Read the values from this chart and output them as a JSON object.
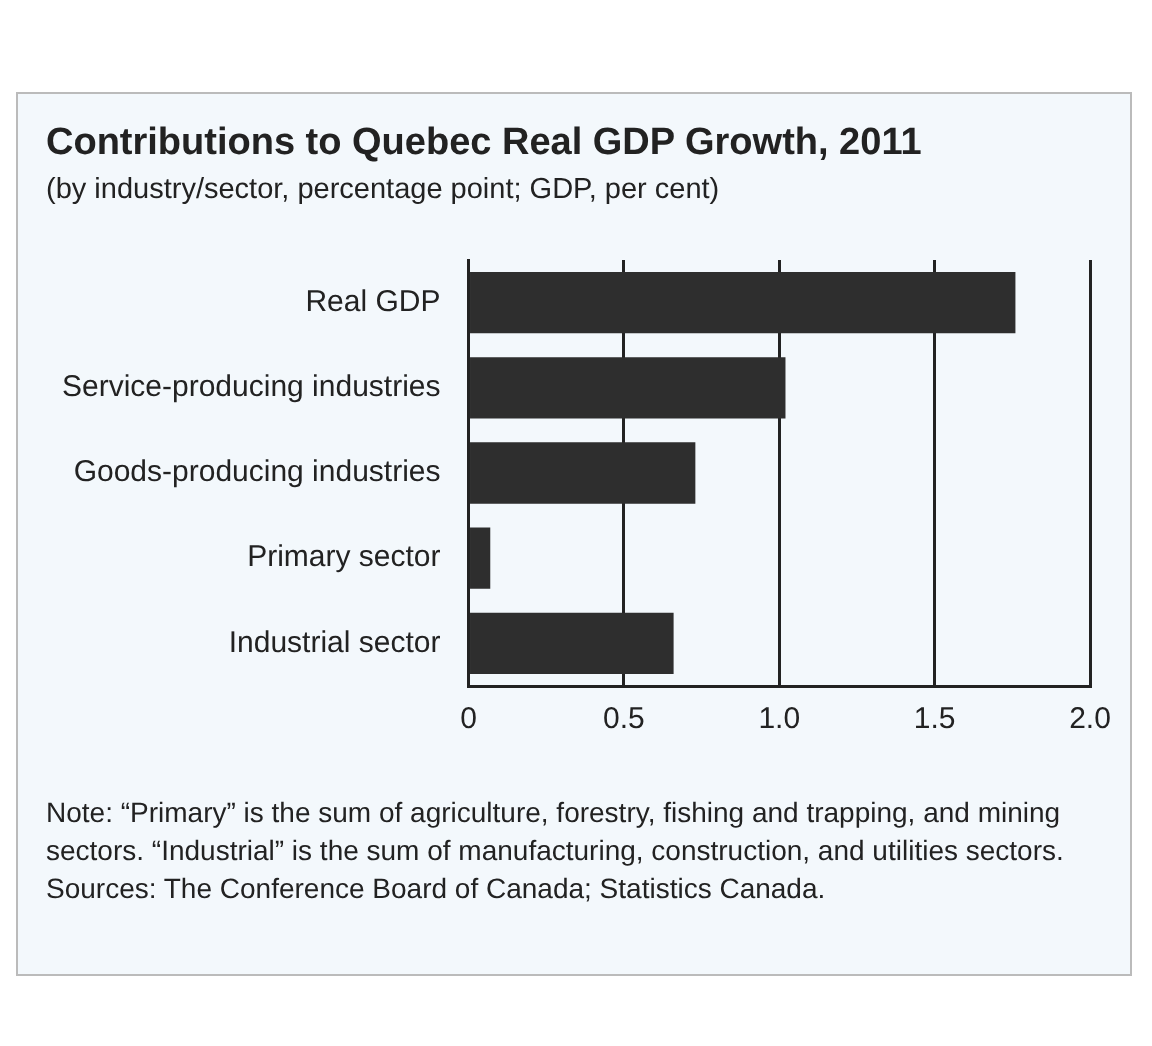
{
  "chart_data": {
    "type": "bar",
    "orientation": "horizontal",
    "title": "Contributions to Quebec Real GDP Growth, 2011",
    "subtitle": "(by industry/sector, percentage point; GDP, per cent)",
    "categories": [
      "Real GDP",
      "Service-producing industries",
      "Goods-producing industries",
      "Primary sector",
      "Industrial sector"
    ],
    "values": [
      1.76,
      1.02,
      0.73,
      0.07,
      0.66
    ],
    "color": "#2e2e2e",
    "xlim": [
      0,
      2.0
    ],
    "xticks": [
      0,
      0.5,
      {
        "value": 1.0,
        "label": "1.0"
      },
      1.5,
      {
        "value": 2.0,
        "label": "2.0"
      }
    ],
    "grid": "x",
    "annotations": [
      "Note: “Primary” is the sum of agriculture, forestry, fishing and trapping, and mining sectors. “Industrial” is the sum of manufacturing, construction, and utilities sectors.",
      "Sources: The Conference Board of Canada; Statistics Canada."
    ]
  }
}
